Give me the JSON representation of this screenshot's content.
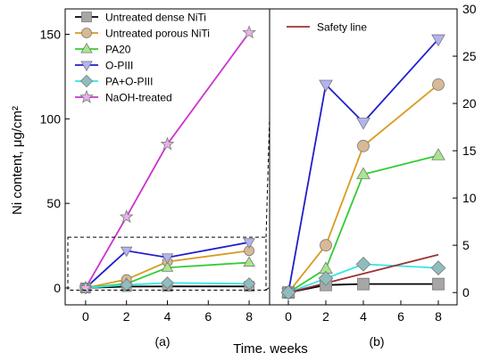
{
  "figure": {
    "x_title": "Time. weeks",
    "y_title": "Ni content, μg/cm²",
    "panel_a_label": "(a)",
    "panel_b_label": "(b)"
  },
  "chart_data": [
    {
      "panel": "(a)",
      "type": "line",
      "xlabel": "Time. weeks",
      "ylabel": "Ni content, μg/cm²",
      "xlim": [
        -1,
        9
      ],
      "ylim": [
        -10,
        165
      ],
      "xticks": [
        0,
        2,
        4,
        6,
        8
      ],
      "yticks": [
        0,
        50,
        100,
        150
      ],
      "x": [
        0,
        2,
        4,
        8
      ],
      "legend_position": "top-left",
      "series": [
        {
          "name": "Untreated dense NiTi",
          "marker": "square",
          "color": "#000000",
          "marker_color": "#a6a6a6",
          "values": [
            0,
            0.8,
            0.9,
            0.9
          ]
        },
        {
          "name": "Untreated porous NiTi",
          "marker": "circle",
          "color": "#d99a1f",
          "marker_color": "#d9b994",
          "values": [
            0,
            5,
            15.5,
            22
          ]
        },
        {
          "name": "PA20",
          "marker": "triangle-up",
          "color": "#33cc33",
          "marker_color": "#a8e68c",
          "values": [
            0,
            2.5,
            12,
            15
          ]
        },
        {
          "name": "O-PIII",
          "marker": "triangle-down",
          "color": "#1f1fcc",
          "marker_color": "#b3b3f2",
          "values": [
            0,
            22,
            18,
            27
          ]
        },
        {
          "name": "PA+O-PIII",
          "marker": "diamond",
          "color": "#33e6e6",
          "marker_color": "#8fbdbd",
          "values": [
            0,
            1.8,
            3,
            2.5
          ]
        },
        {
          "name": "NaOH-treated",
          "marker": "star",
          "color": "#cc33cc",
          "marker_color": "#e6b3e6",
          "values": [
            0,
            42,
            85,
            151
          ]
        }
      ]
    },
    {
      "panel": "(b)",
      "type": "line",
      "xlabel": "Time. weeks",
      "xlim": [
        -1,
        9
      ],
      "ylim": [
        -1.3,
        30
      ],
      "xticks": [
        0,
        2,
        4,
        6,
        8
      ],
      "yticks": [
        0,
        5,
        10,
        15,
        20,
        25,
        30
      ],
      "x": [
        0,
        2,
        4,
        8
      ],
      "legend_position": "top-left",
      "series": [
        {
          "name": "Untreated dense NiTi",
          "marker": "square",
          "color": "#000000",
          "marker_color": "#a6a6a6",
          "values": [
            0,
            0.8,
            0.9,
            0.9
          ]
        },
        {
          "name": "Untreated porous NiTi",
          "marker": "circle",
          "color": "#d99a1f",
          "marker_color": "#d9b994",
          "values": [
            0,
            5,
            15.5,
            22
          ]
        },
        {
          "name": "PA20",
          "marker": "triangle-up",
          "color": "#33cc33",
          "marker_color": "#a8e68c",
          "values": [
            0,
            2.5,
            12.5,
            14.5
          ]
        },
        {
          "name": "O-PIII",
          "marker": "triangle-down",
          "color": "#1f1fcc",
          "marker_color": "#b3b3f2",
          "values": [
            0,
            22,
            18,
            26.8
          ]
        },
        {
          "name": "PA+O-PIII",
          "marker": "diamond",
          "color": "#33e6e6",
          "marker_color": "#8fbdbd",
          "values": [
            0,
            1.5,
            3,
            2.6
          ]
        },
        {
          "name": "Safety line",
          "marker": "none",
          "color": "#993333",
          "values": [
            0,
            1,
            2,
            4
          ]
        }
      ]
    }
  ]
}
